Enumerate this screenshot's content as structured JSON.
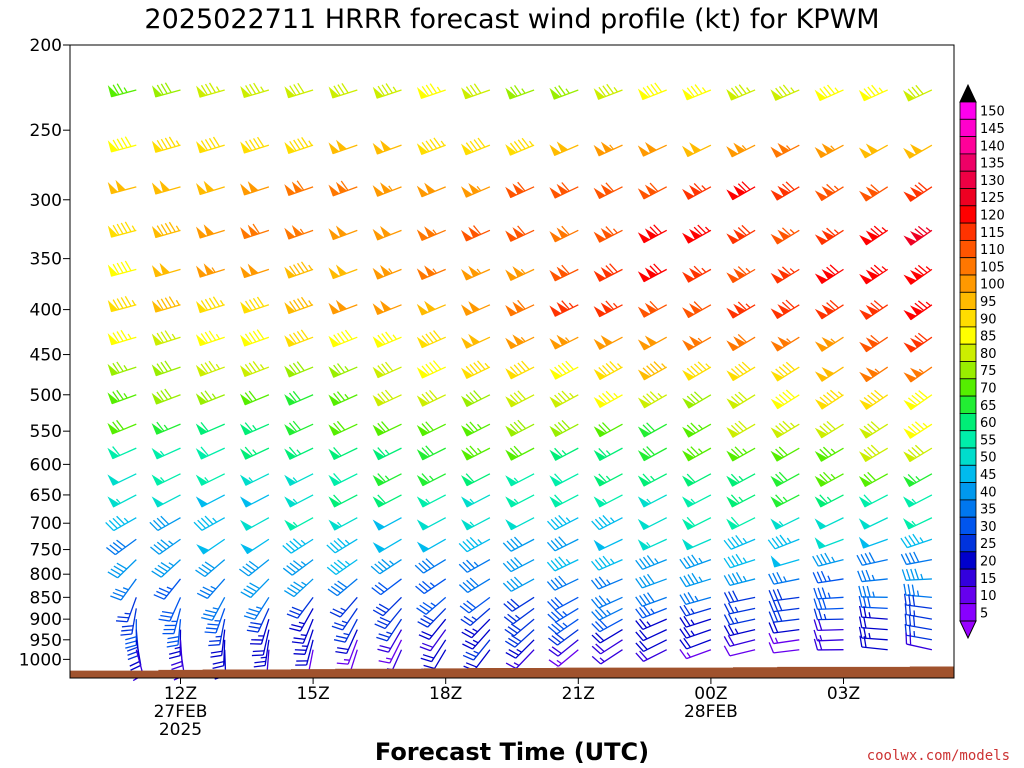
{
  "chart_data": {
    "type": "wind_profile",
    "title": "2025022711 HRRR forecast wind profile (kt) for KPWM",
    "xlabel": "Forecast Time (UTC)",
    "ylabel": "",
    "units": "kt",
    "credit": "coolwx.com/models",
    "y_axis": {
      "scale": "log",
      "range": [
        1050,
        200
      ],
      "ticks": [
        200,
        250,
        300,
        350,
        400,
        450,
        500,
        550,
        600,
        650,
        700,
        750,
        800,
        850,
        900,
        950,
        1000
      ]
    },
    "x_axis": {
      "range_hours": [
        -1.5,
        18.5
      ],
      "ticks": [
        {
          "hour": 1,
          "lines": [
            "12Z",
            "27FEB",
            "2025"
          ]
        },
        {
          "hour": 4,
          "lines": [
            "15Z"
          ]
        },
        {
          "hour": 7,
          "lines": [
            "18Z"
          ]
        },
        {
          "hour": 10,
          "lines": [
            "21Z"
          ]
        },
        {
          "hour": 13,
          "lines": [
            "00Z",
            "28FEB"
          ]
        },
        {
          "hour": 16,
          "lines": [
            "03Z"
          ]
        }
      ]
    },
    "forecast_hours": [
      0,
      1,
      2,
      3,
      4,
      5,
      6,
      7,
      8,
      9,
      10,
      11,
      12,
      13,
      14,
      15,
      16,
      17,
      18
    ],
    "barb_levels_hpa": [
      225,
      260,
      290,
      325,
      360,
      395,
      430,
      465,
      500,
      540,
      575,
      615,
      650,
      690,
      730,
      770,
      810,
      850,
      875,
      900,
      925,
      950,
      975
    ],
    "surface_pressure_hpa": [
      1030,
      1028,
      1027,
      1027,
      1026,
      1025,
      1025,
      1024,
      1023,
      1023,
      1022,
      1022,
      1022,
      1022,
      1021,
      1020,
      1020,
      1020,
      1019
    ],
    "colorbar": {
      "values": [
        5,
        10,
        15,
        20,
        25,
        30,
        35,
        40,
        45,
        50,
        55,
        60,
        65,
        70,
        75,
        80,
        85,
        90,
        95,
        100,
        105,
        110,
        115,
        120,
        125,
        130,
        135,
        140,
        145,
        150
      ],
      "colors": [
        "#8800ff",
        "#6600ee",
        "#3300dd",
        "#0000cc",
        "#0033dd",
        "#0055ee",
        "#0077ee",
        "#0099ee",
        "#00bbee",
        "#00ddcc",
        "#00eeaa",
        "#00ee77",
        "#22ee33",
        "#55ee00",
        "#99ee00",
        "#ccee00",
        "#ffff00",
        "#ffdd00",
        "#ffbb00",
        "#ff9900",
        "#ff7700",
        "#ff5500",
        "#ff3300",
        "#ff0000",
        "#ee0022",
        "#ee0044",
        "#ee0066",
        "#ff0099",
        "#ff00cc",
        "#ff00ee"
      ],
      "under_color": "#9900ff",
      "over_color": "#000000"
    },
    "profile_model": {
      "levels_hpa": [
        225,
        300,
        400,
        500,
        600,
        700,
        800,
        850,
        900,
        950,
        1000
      ],
      "speed_start_kt": [
        80,
        100,
        88,
        72,
        56,
        48,
        38,
        30,
        25,
        20,
        14
      ],
      "speed_end_kt": [
        85,
        125,
        125,
        90,
        72,
        52,
        42,
        35,
        28,
        20,
        12
      ],
      "dir_start_deg": [
        255,
        255,
        255,
        250,
        245,
        240,
        220,
        200,
        180,
        170,
        160
      ],
      "dir_end_deg": [
        245,
        235,
        235,
        235,
        240,
        245,
        265,
        275,
        280,
        280,
        285
      ]
    },
    "grid": false,
    "legend_position": "right"
  }
}
